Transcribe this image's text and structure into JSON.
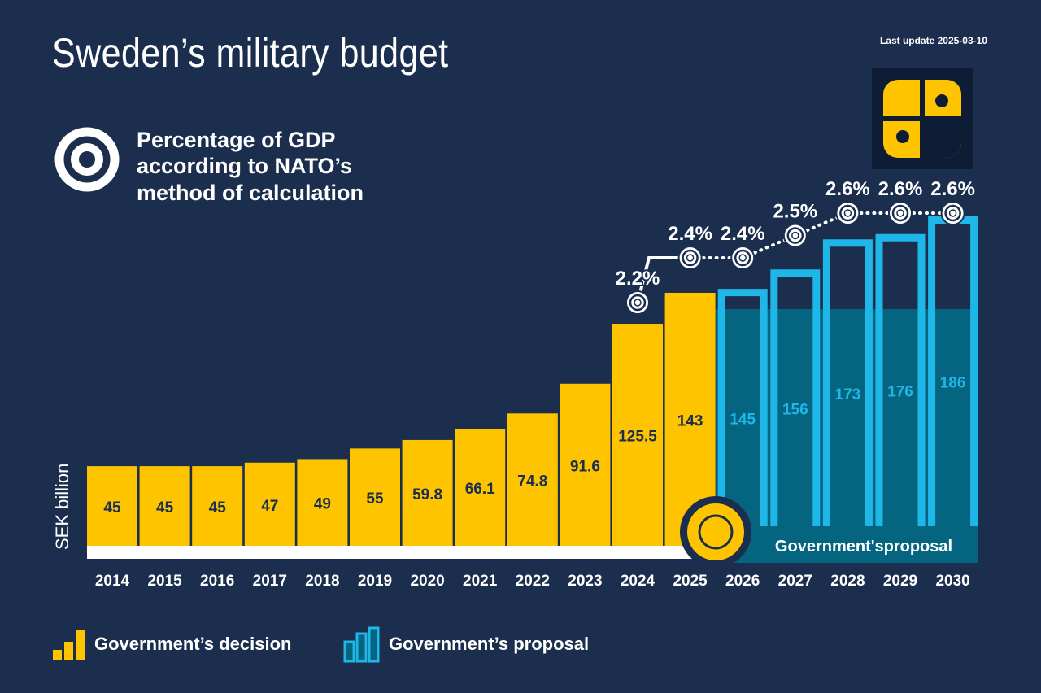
{
  "header": {
    "title": "Sweden’s military budget",
    "last_update": "Last update 2025-03-10"
  },
  "annotation": {
    "line1": "Percentage of GDP",
    "line2": "according to NATO’s",
    "line3": "method of calculation"
  },
  "colors": {
    "background": "#1c2e4e",
    "decision": "#ffc400",
    "proposal_fill": "#05647f",
    "proposal_outline": "#1fb6e8",
    "white": "#ffffff"
  },
  "chart_data": {
    "type": "bar",
    "ylabel": "SEK billion",
    "categories": [
      "2014",
      "2015",
      "2016",
      "2017",
      "2018",
      "2019",
      "2020",
      "2021",
      "2022",
      "2023",
      "2024",
      "2025",
      "2026",
      "2027",
      "2028",
      "2029",
      "2030"
    ],
    "series": [
      {
        "name": "Government’s decision",
        "values": [
          45,
          45,
          45,
          47,
          49,
          55,
          59.8,
          66.1,
          74.8,
          91.6,
          125.5,
          143,
          null,
          null,
          null,
          null,
          null
        ]
      },
      {
        "name": "Government’s proposal",
        "values": [
          null,
          null,
          null,
          null,
          null,
          null,
          null,
          null,
          null,
          null,
          null,
          null,
          145,
          156,
          173,
          176,
          186
        ]
      }
    ],
    "gdp_share": {
      "categories": [
        "2024",
        "2025",
        "2026",
        "2027",
        "2028",
        "2029",
        "2030"
      ],
      "values": [
        2.2,
        2.4,
        2.4,
        2.5,
        2.6,
        2.6,
        2.6
      ],
      "labels": [
        "2.2%",
        "2.4%",
        "2.4%",
        "2.5%",
        "2.6%",
        "2.6%",
        "2.6%"
      ]
    },
    "proposal_band_label": "Government'sproposal",
    "grid": false
  },
  "legend": {
    "decision": "Government’s decision",
    "proposal": "Government’s proposal"
  }
}
